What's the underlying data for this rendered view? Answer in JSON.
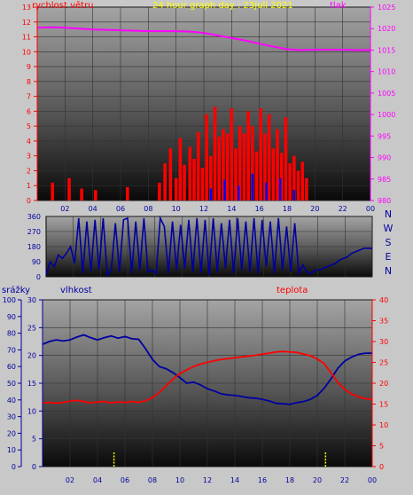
{
  "chart_data": [
    {
      "type": "bar",
      "title": "24 hour graph day : 23Juli 2021",
      "left_axis_label": "rychlost větru",
      "right_axis_label": "tlak",
      "left_ticks": [
        "0",
        "1",
        "2",
        "3",
        "4",
        "5",
        "6",
        "7",
        "8",
        "9",
        "10",
        "11",
        "12",
        "13"
      ],
      "right_ticks": [
        "980",
        "985",
        "990",
        "995",
        "1000",
        "1005",
        "1010",
        "1015",
        "1020",
        "1025"
      ],
      "x_ticks": [
        "02",
        "04",
        "06",
        "08",
        "10",
        "12",
        "14",
        "16",
        "18",
        "20",
        "22",
        "00"
      ],
      "left_ylim": [
        0,
        13
      ],
      "right_ylim": [
        980,
        1025
      ],
      "xlim": [
        0,
        24
      ],
      "colors": {
        "wind": "#ff0000",
        "gust": "#0000ff",
        "pressure": "#ff00ff",
        "left_axis": "#ff0000",
        "right_axis": "#ff00ff"
      },
      "series": [
        {
          "name": "pressure",
          "x": [
            0,
            1,
            2,
            3,
            4,
            5,
            6,
            7,
            8,
            9,
            10,
            11,
            12,
            13,
            14,
            15,
            16,
            17,
            18,
            19,
            20,
            21,
            22,
            23,
            24
          ],
          "values": [
            1020.2,
            1020.3,
            1020.2,
            1020.0,
            1019.8,
            1019.7,
            1019.6,
            1019.5,
            1019.4,
            1019.4,
            1019.4,
            1019.3,
            1019.0,
            1018.4,
            1017.8,
            1017.2,
            1016.5,
            1015.8,
            1015.2,
            1015.0,
            1015.1,
            1015.1,
            1015.1,
            1015.0,
            1015.0
          ]
        },
        {
          "name": "wind",
          "x": [
            1.1,
            2.3,
            3.2,
            4.2,
            6.5,
            8.8,
            9.2,
            9.6,
            10.0,
            10.3,
            10.6,
            11.0,
            11.3,
            11.6,
            11.9,
            12.2,
            12.5,
            12.8,
            13.1,
            13.4,
            13.7,
            14.0,
            14.3,
            14.6,
            14.9,
            15.2,
            15.5,
            15.8,
            16.1,
            16.4,
            16.7,
            17.0,
            17.3,
            17.6,
            17.9,
            18.2,
            18.5,
            18.8,
            19.1,
            19.4
          ],
          "values": [
            1.2,
            1.5,
            0.8,
            0.7,
            0.9,
            1.2,
            2.5,
            3.5,
            1.5,
            4.2,
            2.4,
            3.6,
            2.8,
            4.6,
            2.2,
            5.8,
            3.0,
            6.3,
            4.3,
            4.8,
            4.5,
            6.2,
            3.5,
            5.0,
            4.5,
            6.0,
            5.0,
            3.3,
            6.2,
            4.5,
            5.8,
            3.5,
            4.8,
            3.2,
            5.6,
            2.5,
            3.0,
            2.0,
            2.6,
            1.5
          ]
        },
        {
          "name": "gust",
          "x": [
            12.5,
            13.5,
            14.5,
            15.5,
            16.5,
            17.5,
            18.5
          ],
          "values": [
            0.8,
            1.4,
            1.0,
            1.8,
            1.2,
            1.5,
            0.7
          ]
        }
      ]
    },
    {
      "type": "line",
      "left_ticks": [
        "0",
        "90",
        "180",
        "270",
        "360"
      ],
      "right_labels": [
        "N",
        "W",
        "S",
        "E",
        "N"
      ],
      "ylim": [
        0,
        360
      ],
      "xlim": [
        0,
        24
      ],
      "colors": {
        "direction": "#0000a0",
        "right_labels": "#0000a0"
      },
      "series": [
        {
          "name": "direction",
          "x": [
            0,
            0.3,
            0.6,
            0.9,
            1.2,
            1.5,
            1.8,
            2.1,
            2.4,
            2.7,
            3.0,
            3.3,
            3.6,
            3.9,
            4.2,
            4.5,
            4.8,
            5.1,
            5.4,
            5.7,
            6.0,
            6.3,
            6.6,
            6.9,
            7.2,
            7.5,
            7.8,
            8.1,
            8.4,
            8.7,
            9.0,
            9.3,
            9.6,
            9.9,
            10.2,
            10.5,
            10.8,
            11.1,
            11.4,
            11.7,
            12.0,
            12.3,
            12.6,
            12.9,
            13.2,
            13.5,
            13.8,
            14.1,
            14.4,
            14.7,
            15.0,
            15.3,
            15.6,
            15.9,
            16.2,
            16.5,
            16.8,
            17.1,
            17.4,
            17.7,
            18.0,
            18.3,
            18.6,
            18.9,
            19.2,
            19.5,
            19.8,
            20.1,
            20.4,
            20.7,
            21.0,
            21.3,
            21.6,
            21.9,
            22.2,
            22.5,
            22.8,
            23.1,
            23.4,
            23.7,
            24.0
          ],
          "values": [
            10,
            90,
            60,
            130,
            110,
            140,
            180,
            80,
            350,
            20,
            330,
            30,
            340,
            40,
            350,
            10,
            40,
            320,
            30,
            340,
            350,
            20,
            330,
            40,
            350,
            30,
            40,
            20,
            350,
            300,
            20,
            330,
            40,
            310,
            50,
            340,
            30,
            350,
            20,
            340,
            10,
            350,
            30,
            320,
            50,
            340,
            20,
            350,
            40,
            330,
            30,
            350,
            20,
            340,
            60,
            330,
            20,
            350,
            40,
            300,
            30,
            320,
            20,
            70,
            30,
            20,
            40,
            40,
            50,
            60,
            70,
            80,
            100,
            110,
            120,
            140,
            150,
            160,
            170,
            170,
            170
          ]
        }
      ]
    },
    {
      "type": "line",
      "rain_axis_label": "srážky",
      "humidity_axis_label": "vlhkost",
      "temp_axis_label": "teplota",
      "rain_ticks": [
        "0",
        "10",
        "20",
        "30",
        "40",
        "50",
        "60",
        "70",
        "80",
        "90",
        "100"
      ],
      "humidity_ticks": [
        "0",
        "5",
        "10",
        "15",
        "20",
        "25",
        "30"
      ],
      "temp_ticks": [
        "0",
        "5",
        "10",
        "15",
        "20",
        "25",
        "30",
        "35",
        "40"
      ],
      "x_ticks": [
        "02",
        "04",
        "06",
        "08",
        "10",
        "12",
        "14",
        "16",
        "18",
        "20",
        "22",
        "00"
      ],
      "ylim": [
        0,
        30
      ],
      "temp_ylim": [
        0,
        40
      ],
      "xlim": [
        0,
        24
      ],
      "colors": {
        "humidity": "#0000a0",
        "temperature": "#ff0000",
        "rain": "#ffff00",
        "rain_axis": "#0000a0",
        "humidity_axis": "#0000a0",
        "temp_axis": "#ff0000"
      },
      "series": [
        {
          "name": "humidity",
          "x": [
            0,
            0.5,
            1,
            1.5,
            2,
            2.5,
            3,
            3.5,
            4,
            4.5,
            5,
            5.5,
            6,
            6.5,
            7,
            7.5,
            8,
            8.5,
            9,
            9.5,
            10,
            10.5,
            11,
            11.5,
            12,
            12.5,
            13,
            13.5,
            14,
            14.5,
            15,
            15.5,
            16,
            16.5,
            17,
            17.5,
            18,
            18.5,
            19,
            19.5,
            20,
            20.5,
            21,
            21.5,
            22,
            22.5,
            23,
            23.5,
            24
          ],
          "values": [
            22.0,
            22.5,
            22.8,
            22.6,
            22.8,
            23.3,
            23.7,
            23.2,
            22.8,
            23.2,
            23.5,
            23.1,
            23.4,
            23.0,
            22.9,
            21.2,
            19.3,
            18.0,
            17.6,
            16.9,
            16.0,
            15.0,
            15.2,
            14.7,
            14.0,
            13.6,
            13.1,
            12.9,
            12.8,
            12.6,
            12.4,
            12.3,
            12.1,
            11.8,
            11.4,
            11.3,
            11.2,
            11.5,
            11.7,
            12.1,
            12.8,
            14.1,
            15.8,
            17.7,
            19.0,
            19.7,
            20.2,
            20.4,
            20.4
          ]
        },
        {
          "name": "temperature",
          "x": [
            0,
            0.5,
            1,
            1.5,
            2,
            2.5,
            3,
            3.5,
            4,
            4.5,
            5,
            5.5,
            6,
            6.5,
            7,
            7.5,
            8,
            8.5,
            9,
            9.5,
            10,
            10.5,
            11,
            11.5,
            12,
            12.5,
            13,
            13.5,
            14,
            14.5,
            15,
            15.5,
            16,
            16.5,
            17,
            17.5,
            18,
            18.5,
            19,
            19.5,
            20,
            20.5,
            21,
            21.5,
            22,
            22.5,
            23,
            23.5,
            24
          ],
          "values": [
            15.3,
            15.4,
            15.2,
            15.4,
            15.7,
            15.9,
            15.6,
            15.3,
            15.5,
            15.6,
            15.3,
            15.5,
            15.4,
            15.6,
            15.4,
            15.8,
            16.5,
            17.8,
            19.4,
            21.0,
            22.3,
            23.2,
            24.0,
            24.6,
            25.0,
            25.4,
            25.7,
            25.9,
            26.1,
            26.3,
            26.5,
            26.7,
            27.0,
            27.2,
            27.5,
            27.6,
            27.5,
            27.4,
            27.0,
            26.6,
            25.8,
            24.7,
            22.5,
            20.2,
            18.5,
            17.4,
            16.7,
            16.3,
            16.0
          ]
        },
        {
          "name": "rain",
          "x": [
            5.2,
            20.6
          ],
          "values": [
            3,
            3
          ]
        }
      ]
    }
  ]
}
